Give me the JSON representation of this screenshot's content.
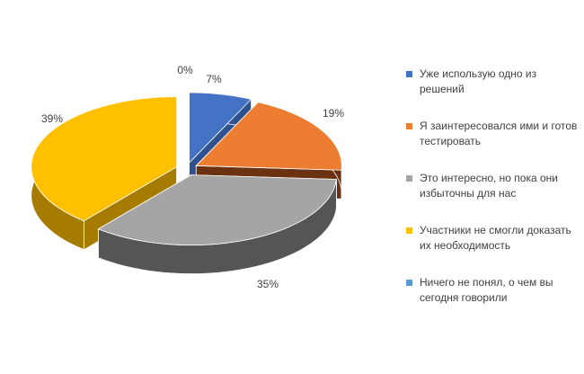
{
  "chart_data": {
    "type": "pie",
    "style": "3d-exploded",
    "legend_position": "right",
    "slices": [
      {
        "label": "Уже использую одно из решений",
        "value": 7,
        "display": "7%",
        "color": "#4472C4",
        "side": "#2F528F"
      },
      {
        "label": "Я заинтересовался ими и готов тестировать",
        "value": 19,
        "display": "19%",
        "color": "#ED7D31",
        "side": "#6B3212"
      },
      {
        "label": "Это интересно, но пока они избыточны для нас",
        "value": 35,
        "display": "35%",
        "color": "#A5A5A5",
        "side": "#555555"
      },
      {
        "label": "Участники не смогли доказать их необходимость",
        "value": 39,
        "display": "39%",
        "color": "#FFC000",
        "side": "#A67C00"
      },
      {
        "label": "Ничего не понял, о чем вы сегодня говорили",
        "value": 0,
        "display": "0%",
        "color": "#5B9BD5",
        "side": "#3A6E9E"
      }
    ]
  }
}
